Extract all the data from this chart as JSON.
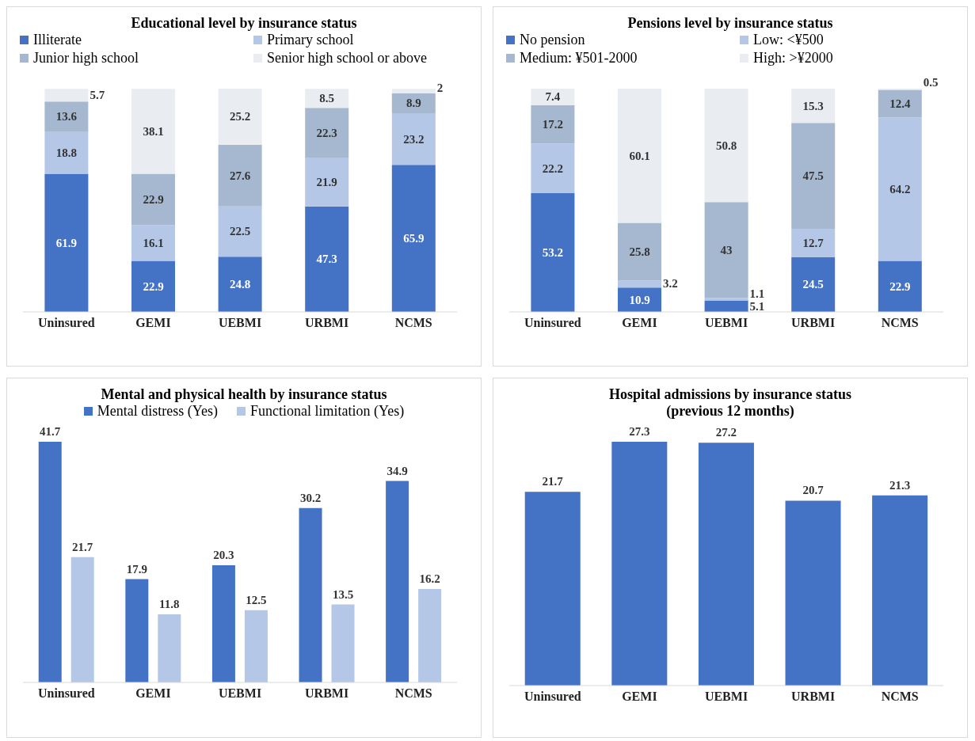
{
  "chart_data": [
    {
      "type": "bar",
      "title": "Educational level by insurance status",
      "stacked": true,
      "data_labels": true,
      "legend": "top",
      "grid": false,
      "categories": [
        "Uninsured",
        "GEMI",
        "UEBMI",
        "URBMI",
        "NCMS"
      ],
      "series": [
        {
          "name": "Illiterate",
          "color": "#4472c4",
          "values": [
            61.9,
            22.9,
            24.8,
            47.3,
            65.9
          ]
        },
        {
          "name": "Primary school",
          "color": "#b4c7e7",
          "values": [
            18.8,
            16.1,
            22.5,
            21.9,
            23.2
          ]
        },
        {
          "name": "Junior high school",
          "color": "#a5b8cf",
          "values": [
            13.6,
            22.9,
            27.6,
            22.3,
            8.9
          ]
        },
        {
          "name": "Senior high school or above",
          "color": "#e9edf2",
          "values": [
            5.7,
            38.1,
            25.2,
            8.5,
            2
          ]
        }
      ]
    },
    {
      "type": "bar",
      "title": "Pensions level by insurance status",
      "stacked": true,
      "data_labels": true,
      "legend": "top",
      "grid": false,
      "categories": [
        "Uninsured",
        "GEMI",
        "UEBMI",
        "URBMI",
        "NCMS"
      ],
      "series": [
        {
          "name": "No pension",
          "color": "#4472c4",
          "values": [
            53.2,
            10.9,
            5.1,
            24.5,
            22.9
          ]
        },
        {
          "name": "Low: <¥500",
          "color": "#b4c7e7",
          "values": [
            22.2,
            3.2,
            1.1,
            12.7,
            64.2
          ]
        },
        {
          "name": "Medium: ¥501-2000",
          "color": "#a5b8cf",
          "values": [
            17.2,
            25.8,
            43,
            47.5,
            12.4
          ]
        },
        {
          "name": "High: >¥2000",
          "color": "#e9edf2",
          "values": [
            7.4,
            60.1,
            50.8,
            15.3,
            0.5
          ]
        }
      ]
    },
    {
      "type": "bar",
      "title": "Mental and physical health by insurance status",
      "data_labels": true,
      "legend": "top",
      "grid": false,
      "categories": [
        "Uninsured",
        "GEMI",
        "UEBMI",
        "URBMI",
        "NCMS"
      ],
      "series": [
        {
          "name": "Mental distress (Yes)",
          "color": "#4472c4",
          "values": [
            41.7,
            17.9,
            20.3,
            30.2,
            34.9
          ]
        },
        {
          "name": "Functional limitation (Yes)",
          "color": "#b4c7e7",
          "values": [
            21.7,
            11.8,
            12.5,
            13.5,
            16.2
          ]
        }
      ]
    },
    {
      "type": "bar",
      "title": "Hospital admissions by insurance status\n(previous 12 months)",
      "data_labels": true,
      "grid": false,
      "categories": [
        "Uninsured",
        "GEMI",
        "UEBMI",
        "URBMI",
        "NCMS"
      ],
      "values": [
        21.7,
        27.3,
        27.2,
        20.7,
        21.3
      ],
      "color": "#4472c4"
    }
  ]
}
